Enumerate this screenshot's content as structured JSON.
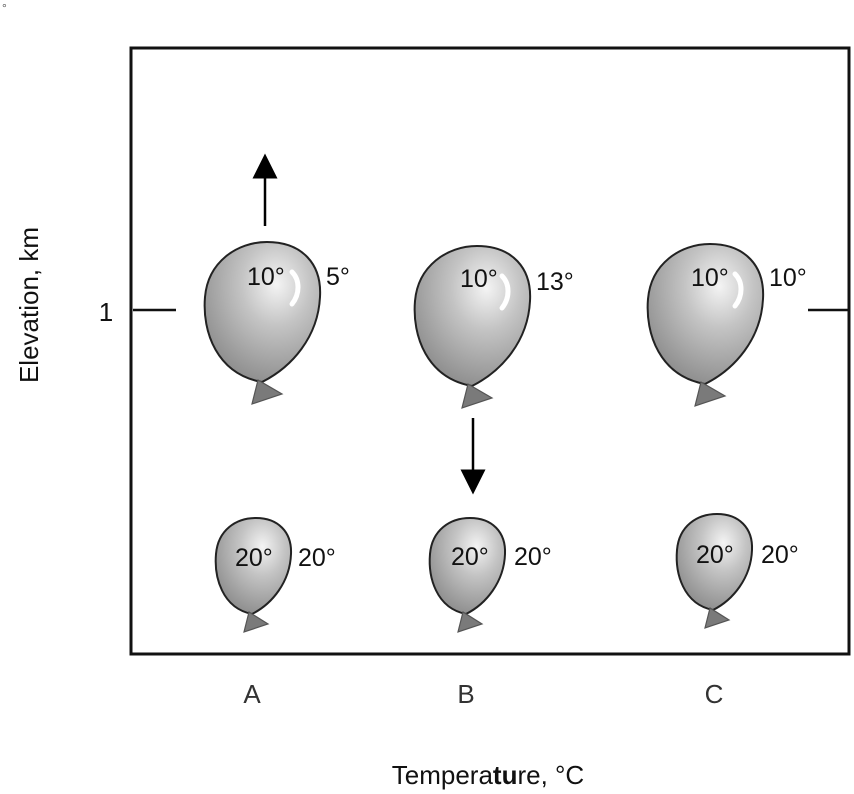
{
  "corner_mark": "°",
  "axes": {
    "y_label": "Elevation, km",
    "y_tick": "1",
    "x_label_prefix": "Tempera",
    "x_label_bold": "tu",
    "x_label_suffix": "re, °C"
  },
  "columns": [
    {
      "label": "A",
      "upper": {
        "inside": "10°",
        "outside": "5°"
      },
      "lower": {
        "inside": "20°",
        "outside": "20°"
      },
      "arrow": "up"
    },
    {
      "label": "B",
      "upper": {
        "inside": "10°",
        "outside": "13°"
      },
      "lower": {
        "inside": "20°",
        "outside": "20°"
      },
      "arrow": "down"
    },
    {
      "label": "C",
      "upper": {
        "inside": "10°",
        "outside": "10°"
      },
      "lower": {
        "inside": "20°",
        "outside": "20°"
      },
      "arrow": "none"
    }
  ],
  "colors": {
    "balloon_light": "#dcdcdc",
    "balloon_dark": "#8a8a8a",
    "outline": "#222222"
  }
}
